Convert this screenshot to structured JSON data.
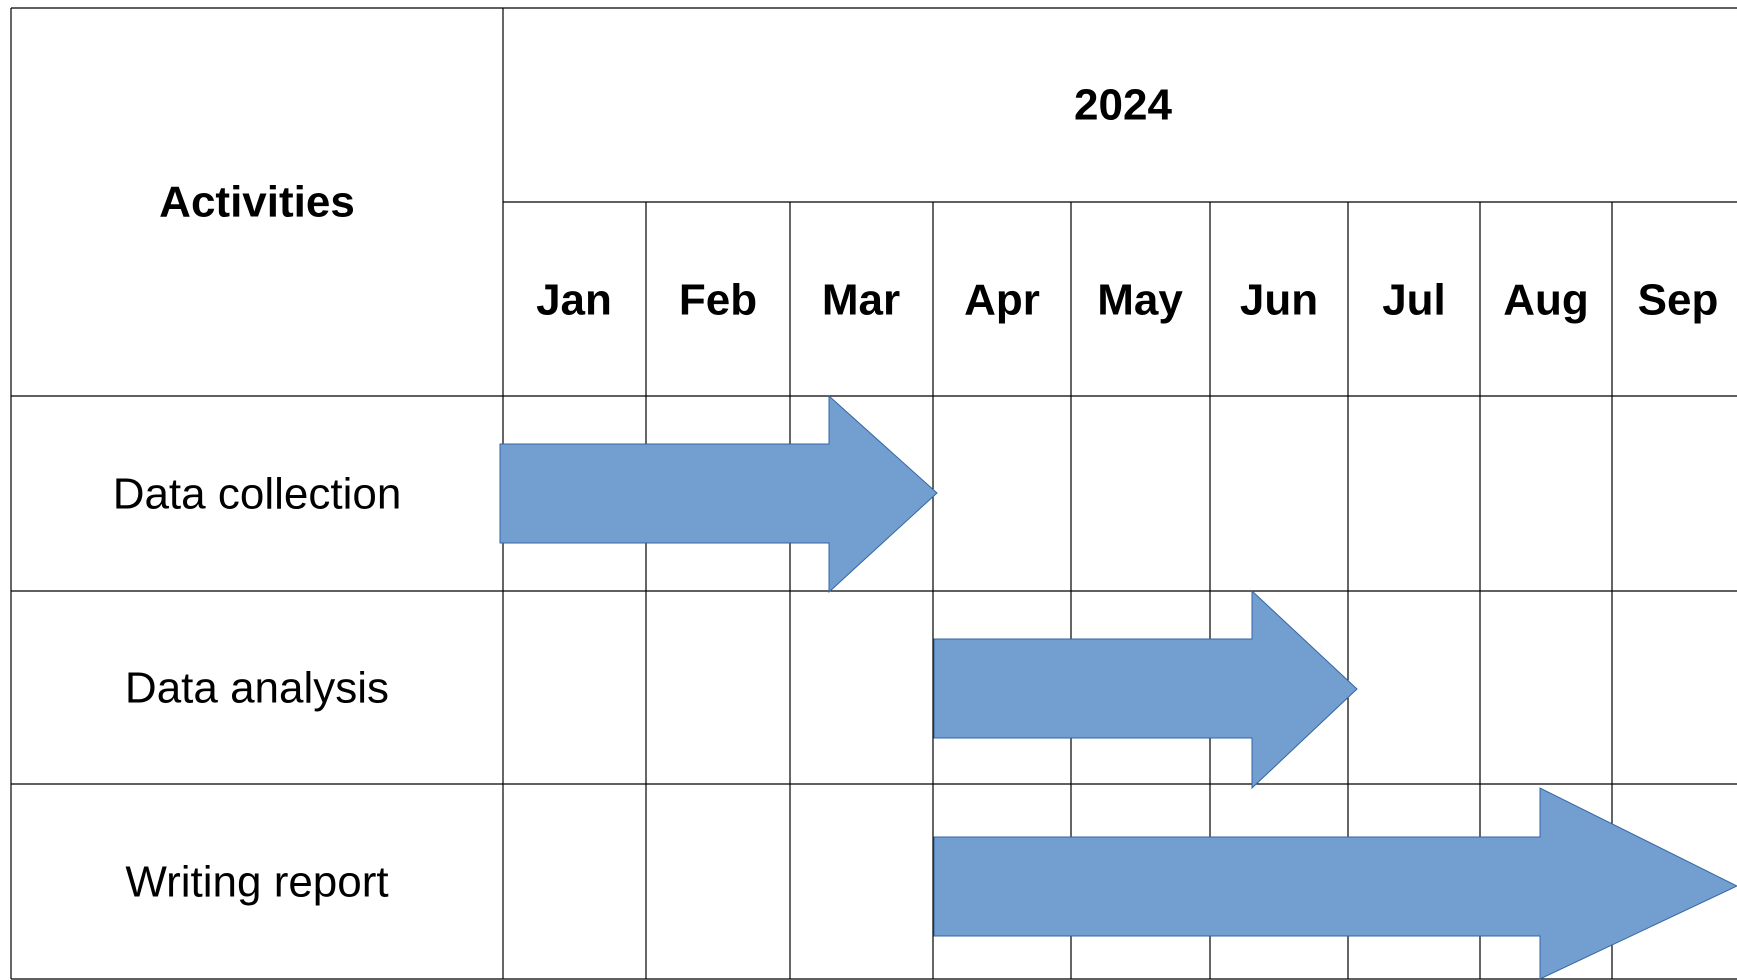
{
  "table": {
    "corner": "Activities",
    "year": "2024",
    "months": [
      "Jan",
      "Feb",
      "Mar",
      "Apr",
      "May",
      "Jun",
      "Jul",
      "Aug",
      "Sep"
    ],
    "activities": [
      "Data collection",
      "Data analysis",
      "Writing report"
    ]
  }
}
